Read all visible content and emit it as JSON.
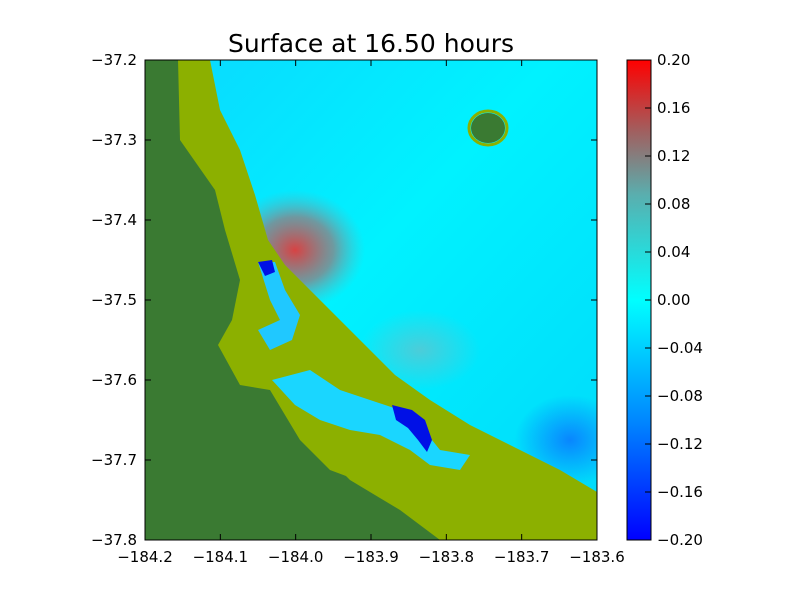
{
  "chart_data": {
    "type": "heatmap",
    "title": "Surface at 16.50 hours",
    "xlabel": "",
    "ylabel": "",
    "xlim": [
      -184.2,
      -183.6
    ],
    "ylim": [
      -37.8,
      -37.2
    ],
    "x_ticks": [
      -184.2,
      -184.1,
      -184.0,
      -183.9,
      -183.8,
      -183.7,
      -183.6
    ],
    "x_tick_labels": [
      "−184.2",
      "−184.1",
      "−184.0",
      "−183.9",
      "−183.8",
      "−183.7",
      "−183.6"
    ],
    "y_ticks": [
      -37.2,
      -37.3,
      -37.4,
      -37.5,
      -37.6,
      -37.7,
      -37.8
    ],
    "y_tick_labels": [
      "−37.2",
      "−37.3",
      "−37.4",
      "−37.5",
      "−37.6",
      "−37.7",
      "−37.8"
    ],
    "colorbar": {
      "range": [
        -0.2,
        0.2
      ],
      "ticks": [
        0.2,
        0.16,
        0.12,
        0.08,
        0.04,
        0.0,
        -0.04,
        -0.08,
        -0.12,
        -0.16,
        -0.2
      ],
      "tick_labels": [
        "0.20",
        "0.16",
        "0.12",
        "0.08",
        "0.04",
        "0.00",
        "−0.04",
        "−0.08",
        "−0.12",
        "−0.16",
        "−0.20"
      ],
      "colors": [
        "#0000ff",
        "#00ffff",
        "#ff0000"
      ]
    },
    "land_colors": {
      "dry": "#3a7a32",
      "coastal": "#8cb000"
    },
    "grid": false
  }
}
